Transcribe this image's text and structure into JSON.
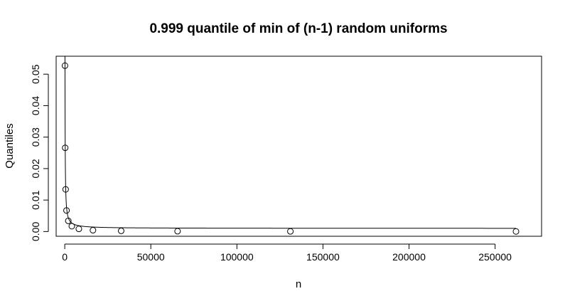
{
  "chart_data": {
    "type": "scatter",
    "title": "0.999 quantile of min of (n-1) random uniforms",
    "xlabel": "n",
    "ylabel": "Quantiles",
    "xlim": [
      -5000,
      277000
    ],
    "ylim": [
      -0.0015,
      0.0557
    ],
    "x_ticks": [
      0,
      50000,
      100000,
      150000,
      200000,
      250000
    ],
    "x_tick_labels": [
      "0",
      "50000",
      "100000",
      "150000",
      "200000",
      "250000"
    ],
    "y_ticks": [
      0.0,
      0.01,
      0.02,
      0.03,
      0.04,
      0.05
    ],
    "y_tick_labels": [
      "0.00",
      "0.01",
      "0.02",
      "0.03",
      "0.04",
      "0.05"
    ],
    "grid": false,
    "points": {
      "x": [
        128,
        256,
        512,
        1024,
        2048,
        4096,
        8192,
        16384,
        32768,
        65536,
        131072,
        262144
      ],
      "y": [
        0.0527,
        0.0266,
        0.0134,
        0.0067,
        0.0034,
        0.0017,
        0.00084,
        0.00042,
        0.00021,
        0.000105,
        5.3e-05,
        2.6e-05
      ]
    },
    "curve": {
      "formula": "7/n + 0.001"
    }
  }
}
